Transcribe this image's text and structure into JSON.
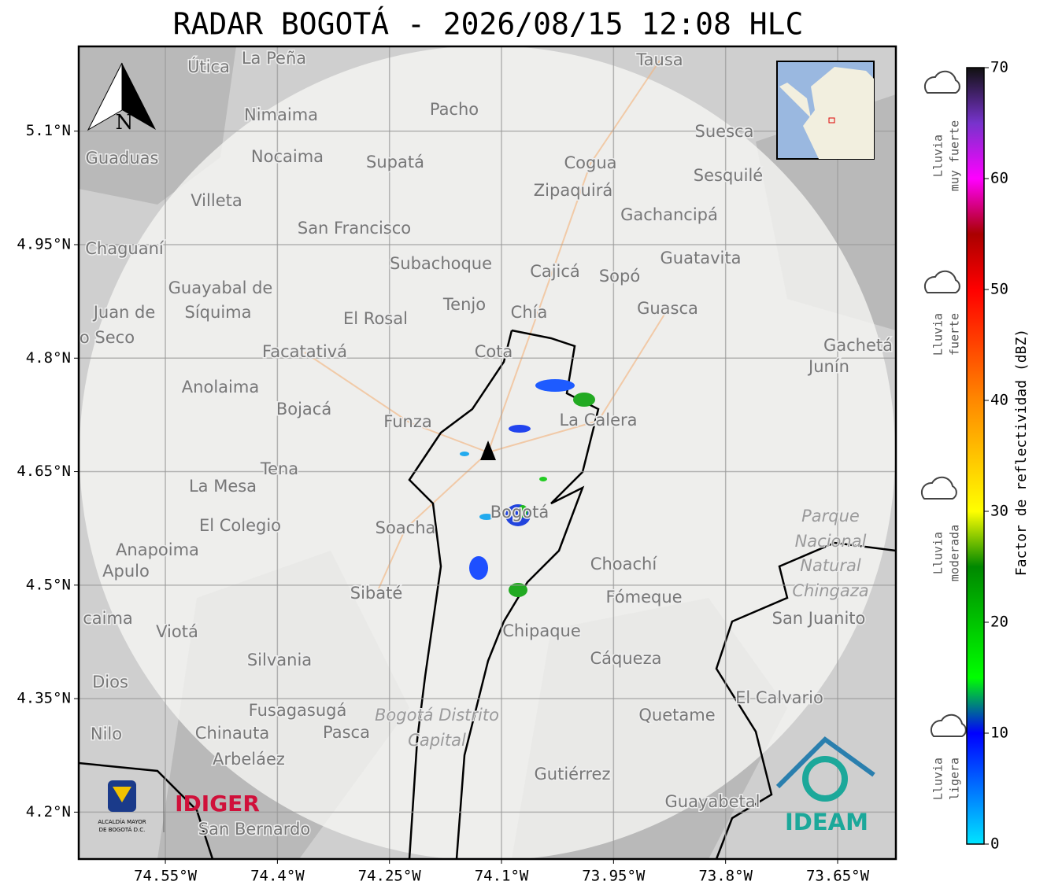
{
  "title": "RADAR BOGOTÁ - 2026/08/15 12:08 HLC",
  "map": {
    "xlim": [
      -74.666,
      -73.572
    ],
    "ylim": [
      4.138,
      5.212
    ],
    "xticks": [
      {
        "value": -74.55,
        "label": "74.55°W"
      },
      {
        "value": -74.4,
        "label": "74.4°W"
      },
      {
        "value": -74.25,
        "label": "74.25°W"
      },
      {
        "value": -74.1,
        "label": "74.1°W"
      },
      {
        "value": -73.95,
        "label": "73.95°W"
      },
      {
        "value": -73.8,
        "label": "73.8°W"
      },
      {
        "value": -73.65,
        "label": "73.65°W"
      }
    ],
    "yticks": [
      {
        "value": 5.1,
        "label": "5.1°N"
      },
      {
        "value": 4.95,
        "label": "4.95°N"
      },
      {
        "value": 4.8,
        "label": "4.8°N"
      },
      {
        "value": 4.65,
        "label": "4.65°N"
      },
      {
        "value": 4.5,
        "label": "4.5°N"
      },
      {
        "value": 4.35,
        "label": "4.35°N"
      },
      {
        "value": 4.2,
        "label": "4.2°N"
      }
    ],
    "grid": true,
    "north": "N",
    "places": [
      "La Peña",
      "Útica",
      "Tausa",
      "Pacho",
      "Nimaima",
      "Guaduas",
      "Nocaima",
      "Supatá",
      "Suesca",
      "Cogua",
      "Sesquilé",
      "Zipaquirá",
      "Villeta",
      "Gachancipá",
      "San Francisco",
      "Chaguaní",
      "Guatavita",
      "Subachoque",
      "Cajicá",
      "Sopó",
      "Guayabal de",
      "Síquima",
      "Tenjo",
      "Guasca",
      "El Rosal",
      "Chía",
      "Juan de",
      "o Seco",
      "Facatativá",
      "Cota",
      "Gachetá",
      "Junín",
      "Anolaima",
      "Bojacá",
      "Funza",
      "La Calera",
      "Tena",
      "La Mesa",
      "Bogotá",
      "Soacha",
      "El Colegio",
      "Anapoima",
      "Apulo",
      "Choachí",
      "Sibaté",
      "Fómeque",
      "San Juanito",
      "caima",
      "Viotá",
      "Chipaque",
      "Silvania",
      "Cáqueza",
      "Dios",
      "El Calvario",
      "Fusagasugá",
      "Quetame",
      "Nilo",
      "Chinauta",
      "Pasca",
      "Arbeláez",
      "Gutiérrez",
      "Guayabetal",
      "San Bernardo"
    ],
    "regions": [
      "Parque",
      "Nacional",
      "Natural",
      "Chingaza",
      "Bogotá Distrito",
      "Capital"
    ],
    "logos": {
      "idiger": "IDIGER",
      "ideam": "IDEAM",
      "alcaldia": [
        "ALCALDÍA MAYOR",
        "DE BOGOTÁ D.C."
      ]
    }
  },
  "colorbar": {
    "label": "Factor de reflectividad (dBZ)",
    "lim": [
      0,
      70
    ],
    "ticks": [
      0,
      10,
      20,
      30,
      40,
      50,
      60,
      70
    ],
    "stops": [
      {
        "value": 0,
        "color": "#00e5ff"
      },
      {
        "value": 10,
        "color": "#0000ff"
      },
      {
        "value": 15,
        "color": "#00ff00"
      },
      {
        "value": 25,
        "color": "#008800"
      },
      {
        "value": 30,
        "color": "#ffff00"
      },
      {
        "value": 40,
        "color": "#ff8800"
      },
      {
        "value": 50,
        "color": "#ff0000"
      },
      {
        "value": 55,
        "color": "#aa0000"
      },
      {
        "value": 60,
        "color": "#ff00ff"
      },
      {
        "value": 65,
        "color": "#7733cc"
      },
      {
        "value": 70,
        "color": "#111111"
      }
    ],
    "categories": [
      [
        "Lluvia",
        "muy fuerte"
      ],
      [
        "Lluvia",
        "fuerte"
      ],
      [
        "Lluvia",
        "moderada"
      ],
      [
        "Lluvia",
        "ligera"
      ]
    ]
  }
}
